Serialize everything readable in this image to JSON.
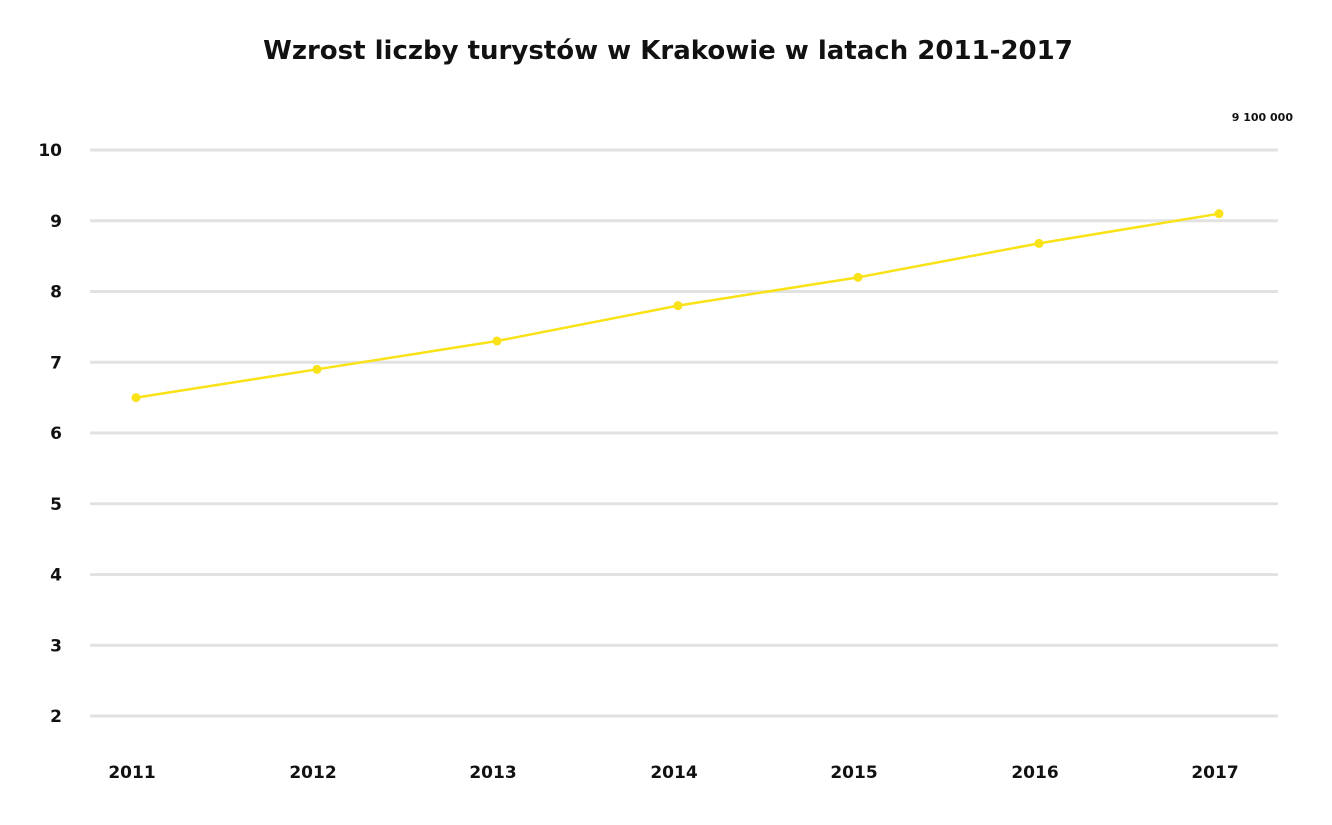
{
  "chart_data": {
    "type": "line",
    "title": "Wzrost liczby turystów w Krakowie w latach 2011-2017",
    "xlabel": "",
    "ylabel": "",
    "categories": [
      "2011",
      "2012",
      "2013",
      "2014",
      "2015",
      "2016",
      "2017"
    ],
    "y_ticks": [
      "2",
      "3",
      "4",
      "5",
      "6",
      "7",
      "8",
      "9",
      "10"
    ],
    "ylim": [
      2,
      10
    ],
    "grid": true,
    "legend": "none",
    "line_color": "#f9e217",
    "series": [
      {
        "values": [
          6.5,
          6.9,
          7.3,
          7.8,
          8.2,
          8.68,
          9.1
        ]
      }
    ],
    "annotations": [
      {
        "category": "2017",
        "text": "9 100 000"
      }
    ]
  }
}
